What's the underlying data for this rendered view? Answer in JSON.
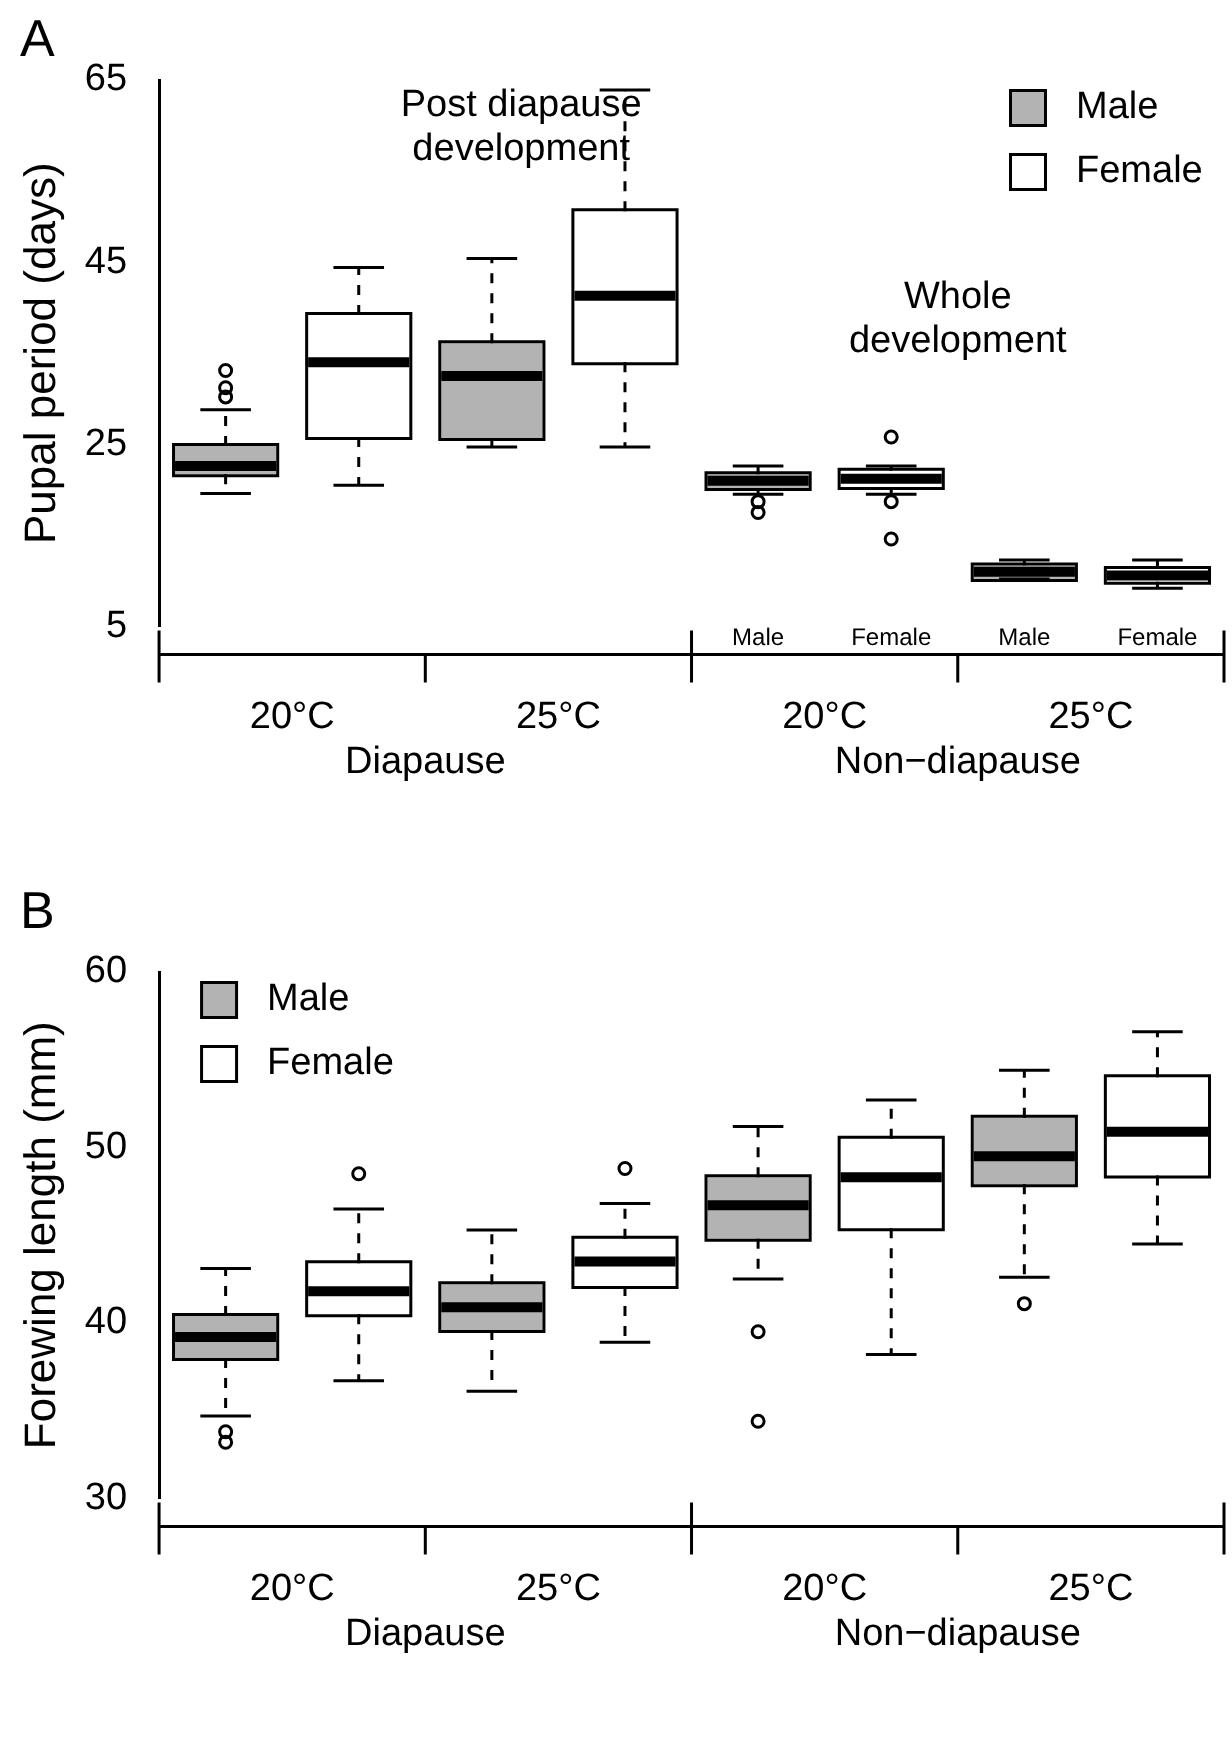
{
  "chart_data": [
    {
      "type": "box",
      "title": "A",
      "ylabel": "Pupal period (days)",
      "categories": [
        "20°C",
        "25°C",
        "20°C",
        "25°C"
      ],
      "ylim": [
        5,
        65
      ],
      "yticks": [
        5,
        25,
        45,
        65
      ],
      "grid": false,
      "legend": "top right",
      "annotations": [
        "Post diapause\ndevelopment",
        "Whole\ndevelopment",
        "Male",
        "Female",
        "Male",
        "Female",
        "Diapause",
        "Non−diapause"
      ],
      "series": [
        {
          "name": "Male",
          "color": "#b3b3b3",
          "boxes": [
            {
              "low": 19.6,
              "q1": 21.7,
              "median": 22.6,
              "q3": 24.8,
              "high": 28.8,
              "outliers": [
                30.2,
                31.2,
                33.1
              ]
            },
            {
              "low": 24.7,
              "q1": 25.7,
              "median": 32.5,
              "q3": 36.1,
              "high": 45.4
            },
            {
              "low": 19.5,
              "q1": 20.2,
              "median": 21.0,
              "q3": 21.7,
              "high": 22.6,
              "outliers": [
                18.7,
                17.5
              ]
            },
            {
              "low": 10.2,
              "q1": 10.2,
              "median": 11.0,
              "q3": 11.7,
              "high": 12.3
            }
          ]
        },
        {
          "name": "Female",
          "color": "#ffffff",
          "boxes": [
            {
              "low": 20.5,
              "q1": 25.8,
              "median": 34.0,
              "q3": 39.2,
              "high": 44.4
            },
            {
              "low": 24.7,
              "q1": 34.0,
              "median": 41.3,
              "q3": 50.6,
              "high": 63.9
            },
            {
              "low": 19.5,
              "q1": 20.3,
              "median": 21.2,
              "q3": 22.1,
              "high": 22.6,
              "outliers": [
                25.8,
                18.7,
                14.6
              ]
            },
            {
              "low": 9.2,
              "q1": 9.9,
              "median": 10.6,
              "q3": 11.3,
              "high": 12.3
            }
          ]
        }
      ]
    },
    {
      "type": "box",
      "title": "B",
      "ylabel": "Forewing length (mm)",
      "categories": [
        "20°C",
        "25°C",
        "20°C",
        "25°C"
      ],
      "ylim": [
        30,
        60
      ],
      "yticks": [
        30,
        40,
        50,
        60
      ],
      "grid": false,
      "legend": "top left",
      "annotations": [
        "Diapause",
        "Non−diapause"
      ],
      "series": [
        {
          "name": "Male",
          "color": "#b3b3b3",
          "boxes": [
            {
              "low": 34.7,
              "q1": 38.0,
              "median": 39.2,
              "q3": 40.4,
              "high": 43.1,
              "outliers": [
                33.8,
                33.2
              ]
            },
            {
              "low": 36.1,
              "q1": 39.6,
              "median": 40.9,
              "q3": 42.2,
              "high": 45.3
            },
            {
              "low": 42.5,
              "q1": 44.8,
              "median": 46.7,
              "q3": 48.3,
              "high": 51.2,
              "outliers": [
                39.5,
                34.4
              ]
            },
            {
              "low": 42.6,
              "q1": 47.9,
              "median": 49.5,
              "q3": 51.7,
              "high": 54.4,
              "outliers": [
                41.1
              ]
            }
          ]
        },
        {
          "name": "Female",
          "color": "#ffffff",
          "boxes": [
            {
              "low": 36.7,
              "q1": 40.5,
              "median": 41.8,
              "q3": 43.4,
              "high": 46.5,
              "outliers": [
                48.5
              ]
            },
            {
              "low": 38.9,
              "q1": 42.1,
              "median": 43.5,
              "q3": 44.8,
              "high": 46.8,
              "outliers": [
                48.8
              ]
            },
            {
              "low": 38.2,
              "q1": 45.4,
              "median": 48.3,
              "q3": 50.5,
              "high": 52.7
            },
            {
              "low": 44.5,
              "q1": 48.4,
              "median": 50.9,
              "q3": 54.0,
              "high": 56.6
            }
          ]
        }
      ]
    }
  ]
}
